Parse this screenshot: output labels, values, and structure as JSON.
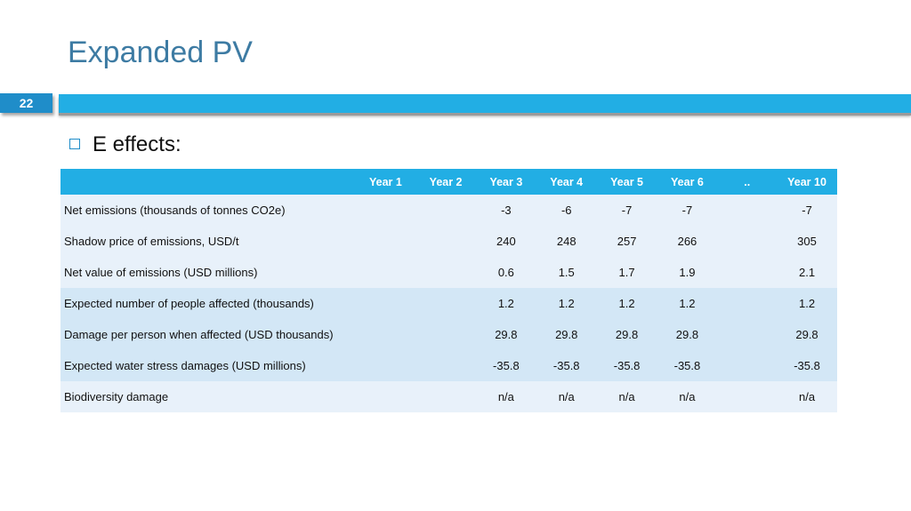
{
  "slide": {
    "title": "Expanded PV",
    "number": "22",
    "bullet": "E effects:"
  },
  "table": {
    "headers": [
      "",
      "Year 1",
      "Year 2",
      "Year 3",
      "Year 4",
      "Year 5",
      "Year 6",
      "..",
      "Year 10"
    ],
    "rows": [
      {
        "label": "Net emissions (thousands of tonnes CO2e)",
        "values": [
          "",
          "",
          "-3",
          "-6",
          "-7",
          "-7",
          "",
          "-7"
        ]
      },
      {
        "label": "Shadow price of emissions, USD/t",
        "values": [
          "",
          "",
          "240",
          "248",
          "257",
          "266",
          "",
          "305"
        ]
      },
      {
        "label": "Net value of emissions (USD millions)",
        "values": [
          "",
          "",
          "0.6",
          "1.5",
          "1.7",
          "1.9",
          "",
          "2.1"
        ]
      },
      {
        "label": "Expected number of people affected (thousands)",
        "values": [
          "",
          "",
          "1.2",
          "1.2",
          "1.2",
          "1.2",
          "",
          "1.2"
        ]
      },
      {
        "label": "Damage per person when affected (USD thousands)",
        "values": [
          "",
          "",
          "29.8",
          "29.8",
          "29.8",
          "29.8",
          "",
          "29.8"
        ]
      },
      {
        "label": "Expected water stress damages (USD millions)",
        "values": [
          "",
          "",
          "-35.8",
          "-35.8",
          "-35.8",
          "-35.8",
          "",
          "-35.8"
        ]
      },
      {
        "label": "Biodiversity damage",
        "values": [
          "",
          "",
          "n/a",
          "n/a",
          "n/a",
          "n/a",
          "",
          "n/a"
        ]
      }
    ]
  },
  "colors": {
    "accent": "#22aee4",
    "title": "#3d7ba3",
    "band_light": "#e8f1fa",
    "band_dark": "#d3e7f6"
  }
}
